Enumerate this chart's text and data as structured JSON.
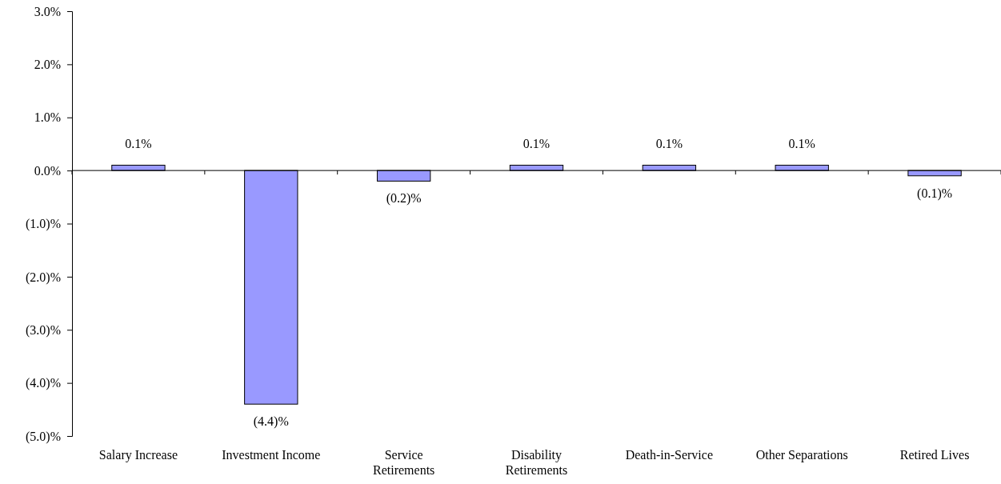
{
  "chart_data": {
    "type": "bar",
    "categories": [
      "Salary Increase",
      "Investment Income",
      "Service\nRetirements",
      "Disability\nRetirements",
      "Death-in-Service",
      "Other Separations",
      "Retired Lives"
    ],
    "values": [
      0.1,
      -4.4,
      -0.2,
      0.1,
      0.1,
      0.1,
      -0.1
    ],
    "value_labels": [
      "0.1%",
      "(4.4)%",
      "(0.2)%",
      "0.1%",
      "0.1%",
      "0.1%",
      "(0.1)%"
    ],
    "color": "#9999ff",
    "ylim": [
      -5,
      3
    ],
    "yticks": [
      {
        "value": -5,
        "label": "(5.0)%"
      },
      {
        "value": -4,
        "label": "(4.0)%"
      },
      {
        "value": -3,
        "label": "(3.0)%"
      },
      {
        "value": -2,
        "label": "(2.0)%"
      },
      {
        "value": -1,
        "label": "(1.0)%"
      },
      {
        "value": 0,
        "label": "0.0%"
      },
      {
        "value": 1,
        "label": "1.0%"
      },
      {
        "value": 2,
        "label": "2.0%"
      },
      {
        "value": 3,
        "label": "3.0%"
      }
    ]
  }
}
